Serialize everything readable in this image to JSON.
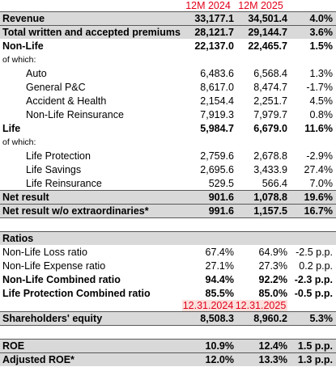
{
  "table": {
    "header": [
      "12M 2024",
      "12M 2025"
    ],
    "rows": [
      [
        "Revenue",
        "33,177.1",
        "34,501.4",
        "4.0%"
      ],
      [
        "Total written and accepted premiums",
        "28,121.7",
        "29,144.7",
        "3.6%"
      ],
      [
        "Non-Life",
        "22,137.0",
        "22,465.7",
        "1.5%"
      ],
      [
        "of which:"
      ],
      [
        "Auto",
        "6,483.6",
        "6,568.4",
        "1.3%"
      ],
      [
        "General P&C",
        "8,617.0",
        "8,474.7",
        "-1.7%"
      ],
      [
        "Accident & Health",
        "2,154.4",
        "2,251.7",
        "4.5%"
      ],
      [
        "Non-Life Reinsurance",
        "7,919.3",
        "7,979.7",
        "0.8%"
      ],
      [
        "Life",
        "5,984.7",
        "6,679.0",
        "11.6%"
      ],
      [
        "of which:"
      ],
      [
        "Life Protection",
        "2,759.6",
        "2,678.8",
        "-2.9%"
      ],
      [
        "Life Savings",
        "2,695.6",
        "3,433.9",
        "27.4%"
      ],
      [
        "Life Reinsurance",
        "529.5",
        "566.4",
        "7.0%"
      ],
      [
        "Net result",
        "901.6",
        "1,078.8",
        "19.6%"
      ],
      [
        "Net result w/o extraordinaries*",
        "991.6",
        "1,157.5",
        "16.7%"
      ]
    ],
    "ratios_title": "Ratios",
    "ratio_rows": [
      [
        "Non-Life Loss ratio",
        "67.4%",
        "64.9%",
        "-2.5 p.p."
      ],
      [
        "Non-Life Expense ratio",
        "27.1%",
        "27.3%",
        "0.2 p.p."
      ],
      [
        "Non-Life Combined ratio",
        "94.4%",
        "92.2%",
        "-2.3 p.p."
      ],
      [
        "Life Protection Combined ratio",
        "85.5%",
        "85.0%",
        "-0.5 p.p."
      ]
    ],
    "equity_header": [
      "12.31.2024",
      "12.31.2025"
    ],
    "equity_row": [
      "Shareholders' equity",
      "8,508.3",
      "8,960.2",
      "5.3%"
    ],
    "roe_rows": [
      [
        "ROE",
        "10.9%",
        "12.4%",
        "1.5 p.p."
      ],
      [
        "Adjusted ROE*",
        "12.0%",
        "13.3%",
        "1.3 p.p."
      ]
    ]
  }
}
